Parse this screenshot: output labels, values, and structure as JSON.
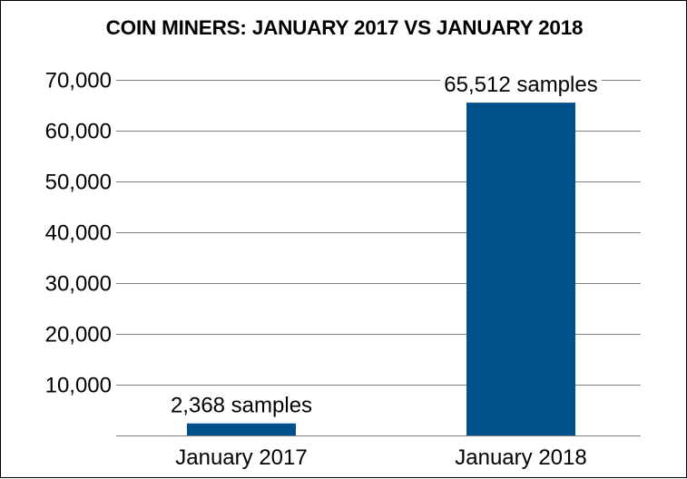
{
  "chart_data": {
    "type": "bar",
    "title": "COIN MINERS: JANUARY 2017 VS JANUARY 2018",
    "categories": [
      "January 2017",
      "January 2018"
    ],
    "values": [
      2368,
      65512
    ],
    "data_labels": [
      "2,368 samples",
      "65,512 samples"
    ],
    "ylim": [
      0,
      70000
    ],
    "yticks": [
      10000,
      20000,
      30000,
      40000,
      50000,
      60000,
      70000
    ],
    "ytick_labels": [
      "10,000",
      "20,000",
      "30,000",
      "40,000",
      "50,000",
      "60,000",
      "70,000"
    ],
    "xlabel": "",
    "ylabel": "",
    "grid": true,
    "legend": "none",
    "bar_color": "#00508C",
    "grid_color": "#7f7f7f"
  }
}
